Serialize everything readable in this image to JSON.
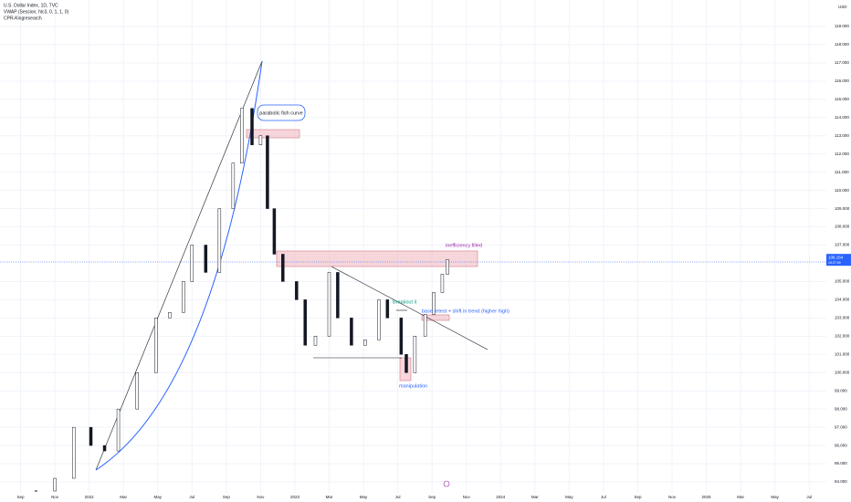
{
  "chart_data": {
    "type": "candlestick",
    "legend": [
      "U.S. Dollar Index, 1D, TVC",
      "VWAP (Session, hlc3, 0, 1, 1, 0)",
      "CPR-Kingresearch"
    ],
    "currency": "USD",
    "x": [
      0.9,
      2.0,
      3.1,
      4.1,
      4.9,
      5.7,
      6.8,
      7.9,
      8.7,
      9.5,
      10.0,
      10.8,
      11.6,
      12.4,
      12.9,
      13.5,
      14.0,
      14.4,
      14.8,
      15.3,
      16.1,
      16.6,
      17.2,
      18.0,
      18.5,
      19.3,
      20.1,
      20.9,
      21.4,
      22.2,
      22.5,
      23.0,
      23.6,
      24.1,
      24.6,
      24.9
    ],
    "close": [
      93.5,
      94.2,
      97,
      96,
      95.7,
      98,
      100,
      103,
      103.3,
      105,
      107,
      105.5,
      109,
      111.5,
      114.5,
      112.5,
      113,
      109,
      106.5,
      105,
      104,
      101.5,
      102,
      105.5,
      103,
      101.5,
      101.8,
      104,
      103,
      101,
      100,
      102,
      103.2,
      104.4,
      105.4,
      106.2
    ],
    "xlim": [
      -1.2,
      47
    ],
    "xticks": [
      {
        "value": 0,
        "label": "Sep"
      },
      {
        "value": 2,
        "label": "Nov"
      },
      {
        "value": 4,
        "label": "2022"
      },
      {
        "value": 6,
        "label": "Mar"
      },
      {
        "value": 8,
        "label": "May"
      },
      {
        "value": 10,
        "label": "Jul"
      },
      {
        "value": 12,
        "label": "Sep"
      },
      {
        "value": 14,
        "label": "Nov"
      },
      {
        "value": 16,
        "label": "2023"
      },
      {
        "value": 18,
        "label": "Mar"
      },
      {
        "value": 20,
        "label": "May"
      },
      {
        "value": 22,
        "label": "Jul"
      },
      {
        "value": 24,
        "label": "Sep"
      },
      {
        "value": 26,
        "label": "Nov"
      },
      {
        "value": 28,
        "label": "2024"
      },
      {
        "value": 30,
        "label": "Mar"
      },
      {
        "value": 32,
        "label": "May"
      },
      {
        "value": 34,
        "label": "Jul"
      },
      {
        "value": 36,
        "label": "Sep"
      },
      {
        "value": 38,
        "label": "Nov"
      },
      {
        "value": 40,
        "label": "2025"
      },
      {
        "value": 42,
        "label": "Mar"
      },
      {
        "value": 44,
        "label": "May"
      },
      {
        "value": 46,
        "label": "Jul"
      }
    ],
    "ylim": [
      93.4,
      120.45
    ],
    "yticks": [
      {
        "value": 94,
        "label": "94.000"
      },
      {
        "value": 95,
        "label": "95.000"
      },
      {
        "value": 96,
        "label": "96.000"
      },
      {
        "value": 97,
        "label": "97.000"
      },
      {
        "value": 98,
        "label": "98.000"
      },
      {
        "value": 99,
        "label": "99.000"
      },
      {
        "value": 100,
        "label": "100.000"
      },
      {
        "value": 101,
        "label": "101.000"
      },
      {
        "value": 102,
        "label": "102.000"
      },
      {
        "value": 103,
        "label": "103.000"
      },
      {
        "value": 104,
        "label": "104.000"
      },
      {
        "value": 105,
        "label": "105.000"
      },
      {
        "value": 107,
        "label": "107.000"
      },
      {
        "value": 108,
        "label": "108.000"
      },
      {
        "value": 109,
        "label": "109.000"
      },
      {
        "value": 110,
        "label": "110.000"
      },
      {
        "value": 111,
        "label": "111.000"
      },
      {
        "value": 112,
        "label": "112.000"
      },
      {
        "value": 113,
        "label": "113.000"
      },
      {
        "value": 114,
        "label": "114.000"
      },
      {
        "value": 115,
        "label": "115.000"
      },
      {
        "value": 116,
        "label": "116.000"
      },
      {
        "value": 117,
        "label": "117.000"
      },
      {
        "value": 118,
        "label": "118.000"
      },
      {
        "value": 119,
        "label": "119.000"
      }
    ],
    "grid": true,
    "last_price": 106.164,
    "countdown": "15:27:09",
    "up_color": "#ffffff",
    "down_color": "#131722",
    "annotations": [
      "parabolic fish curve",
      "inefficiency filled",
      "Breakout it",
      "base retest + shift in trend (higher high)",
      "manipulation"
    ]
  }
}
